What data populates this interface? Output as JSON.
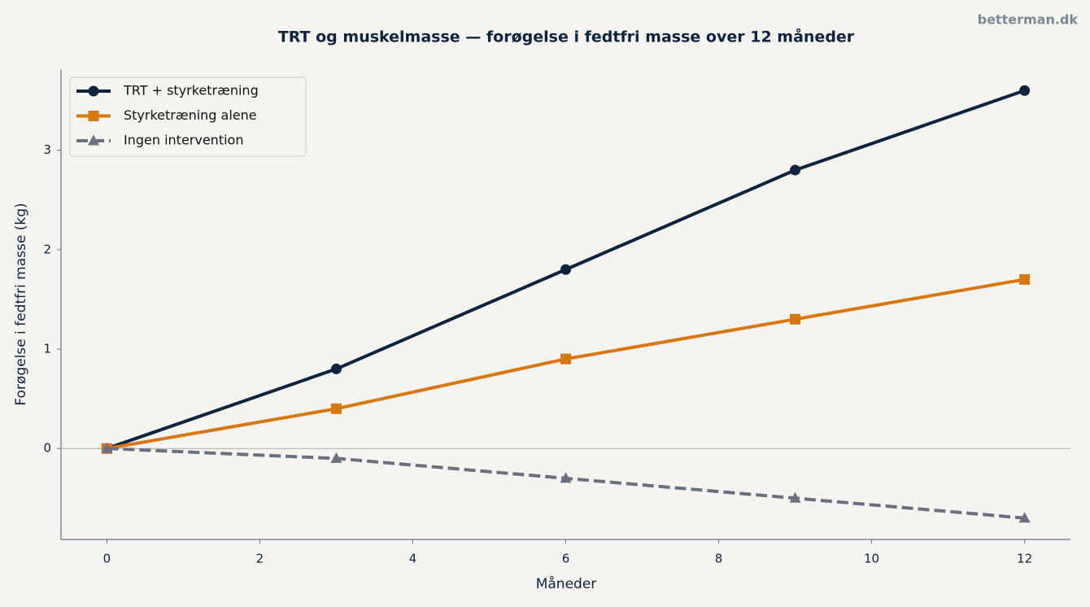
{
  "chart_data": {
    "type": "line",
    "title": "TRT og muskelmasse — forøgelse i fedtfri masse over 12 måneder",
    "watermark": "betterman.dk",
    "x_label": "Måneder",
    "y_label": "Forøgelse i fedtfri masse (kg)",
    "x": [
      0,
      3,
      6,
      9,
      12
    ],
    "series": [
      {
        "name": "TRT + styrketræning",
        "color": "#0d2340",
        "marker": "circle",
        "dashed": false,
        "values": [
          0,
          0.8,
          1.8,
          2.8,
          3.6
        ]
      },
      {
        "name": "Styrketræning alene",
        "color": "#d9770f",
        "marker": "square",
        "dashed": false,
        "values": [
          0,
          0.4,
          0.9,
          1.3,
          1.7
        ]
      },
      {
        "name": "Ingen intervention",
        "color": "#6b7080",
        "marker": "triangle",
        "dashed": true,
        "values": [
          0,
          -0.1,
          -0.3,
          -0.5,
          -0.7
        ]
      }
    ],
    "xlim": [
      -0.6,
      12.6
    ],
    "xticks": [
      0,
      2,
      4,
      6,
      8,
      10,
      12
    ],
    "ylim": [
      -0.915,
      3.815
    ],
    "yticks": [
      0,
      1,
      2,
      3
    ],
    "reference_line": 0,
    "grid": false,
    "legend": "upper left"
  }
}
